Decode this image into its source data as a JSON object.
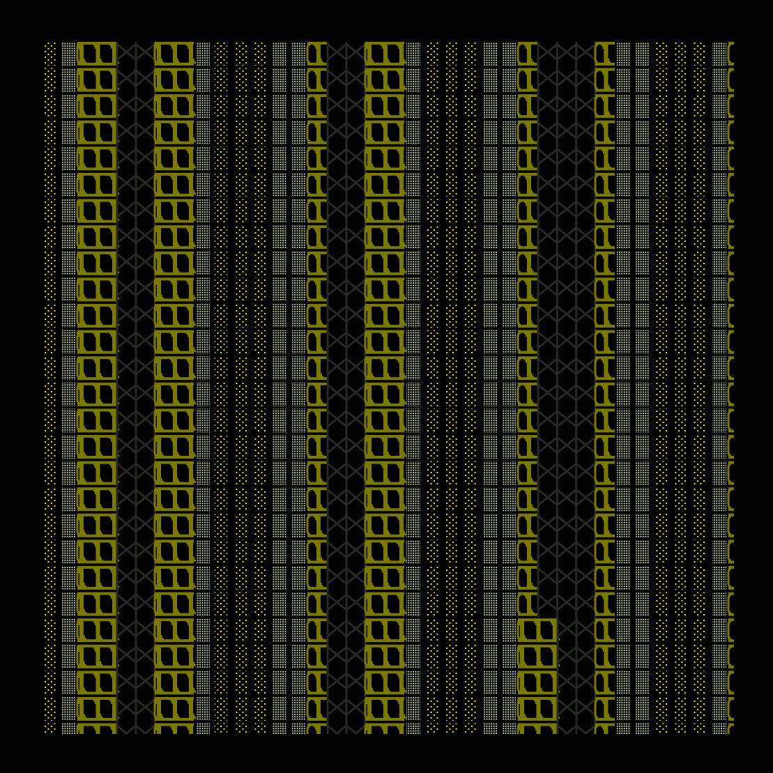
{
  "palette": {
    "background": "#030303",
    "olive": "#7b7a00",
    "yellow_dot": "#e6e000",
    "pale_dot": "#d4e2b4",
    "cross": "#262826"
  },
  "columns": [
    "yellow-dots",
    "pale-dots",
    "wide-glyph",
    "crosses",
    "wide-glyph",
    "pale-dots",
    "yellow-dots",
    "yellow-dots",
    "yellow-dots",
    "pale-dots",
    "pale-dots",
    "narrow-glyph",
    "crosses",
    "wide-glyph",
    "pale-dots",
    "yellow-dots",
    "yellow-dots",
    "yellow-dots",
    "pale-dots",
    "pale-dots",
    "narrow-glyph",
    "crosses",
    "narrow-glyph",
    "pale-dots",
    "pale-dots",
    "yellow-dots",
    "yellow-dots",
    "yellow-dots",
    "pale-dots",
    "partial-glyph"
  ],
  "row_count": 27
}
